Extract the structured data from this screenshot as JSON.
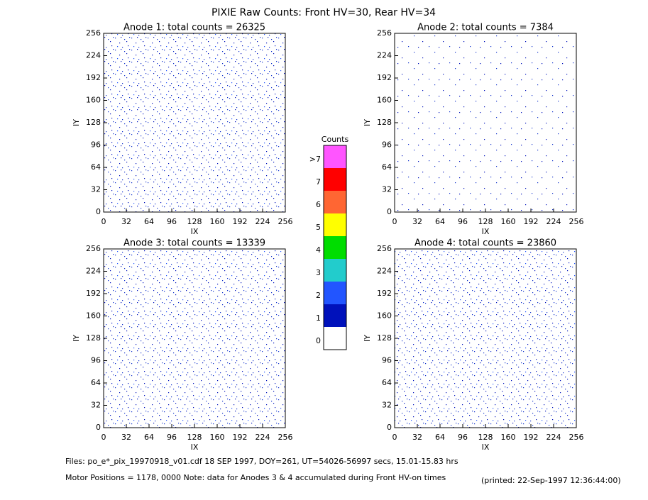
{
  "title": "PIXIE Raw Counts:  Front HV=30, Rear HV=34",
  "chart_data": [
    {
      "type": "heatmap",
      "title": "Anode 1: total counts = 26325",
      "xlabel": "IX",
      "ylabel": "IY",
      "xlim": [
        0,
        256
      ],
      "ylim": [
        0,
        256
      ],
      "xticks": [
        0,
        32,
        64,
        96,
        128,
        160,
        192,
        224,
        256
      ],
      "yticks": [
        0,
        32,
        64,
        96,
        128,
        160,
        192,
        224,
        256
      ]
    },
    {
      "type": "heatmap",
      "title": "Anode 2: total counts = 7384",
      "xlabel": "IX",
      "ylabel": "IY",
      "xlim": [
        0,
        256
      ],
      "ylim": [
        0,
        256
      ],
      "xticks": [
        0,
        32,
        64,
        96,
        128,
        160,
        192,
        224,
        256
      ],
      "yticks": [
        0,
        32,
        64,
        96,
        128,
        160,
        192,
        224,
        256
      ]
    },
    {
      "type": "heatmap",
      "title": "Anode 3: total counts = 13339",
      "xlabel": "IX",
      "ylabel": "IY",
      "xlim": [
        0,
        256
      ],
      "ylim": [
        0,
        256
      ],
      "xticks": [
        0,
        32,
        64,
        96,
        128,
        160,
        192,
        224,
        256
      ],
      "yticks": [
        0,
        32,
        64,
        96,
        128,
        160,
        192,
        224,
        256
      ]
    },
    {
      "type": "heatmap",
      "title": "Anode 4: total counts = 23860",
      "xlabel": "IX",
      "ylabel": "IY",
      "xlim": [
        0,
        256
      ],
      "ylim": [
        0,
        256
      ],
      "xticks": [
        0,
        32,
        64,
        96,
        128,
        160,
        192,
        224,
        256
      ],
      "yticks": [
        0,
        32,
        64,
        96,
        128,
        160,
        192,
        224,
        256
      ]
    }
  ],
  "colorbar": {
    "title": "Counts",
    "levels": [
      {
        "label": ">7",
        "color": "#ff55ff"
      },
      {
        "label": "7",
        "color": "#ff0000"
      },
      {
        "label": "6",
        "color": "#ff6633"
      },
      {
        "label": "5",
        "color": "#ffff00"
      },
      {
        "label": "4",
        "color": "#00dd00"
      },
      {
        "label": "3",
        "color": "#22cccc"
      },
      {
        "label": "2",
        "color": "#2255ff"
      },
      {
        "label": "1",
        "color": "#0011bb"
      },
      {
        "label": "0",
        "color": "#ffffff"
      }
    ]
  },
  "footer": {
    "files": "Files: po_e*_pix_19970918_v01.cdf    18 SEP 1997, DOY=261, UT=54026-56997 secs, 15.01-15.83 hrs",
    "motor": "Motor Positions = 1178, 0000   Note: data for Anodes 3 & 4 accumulated during Front HV-on times",
    "printed": "(printed: 22-Sep-1997 12:36:44:00)"
  }
}
